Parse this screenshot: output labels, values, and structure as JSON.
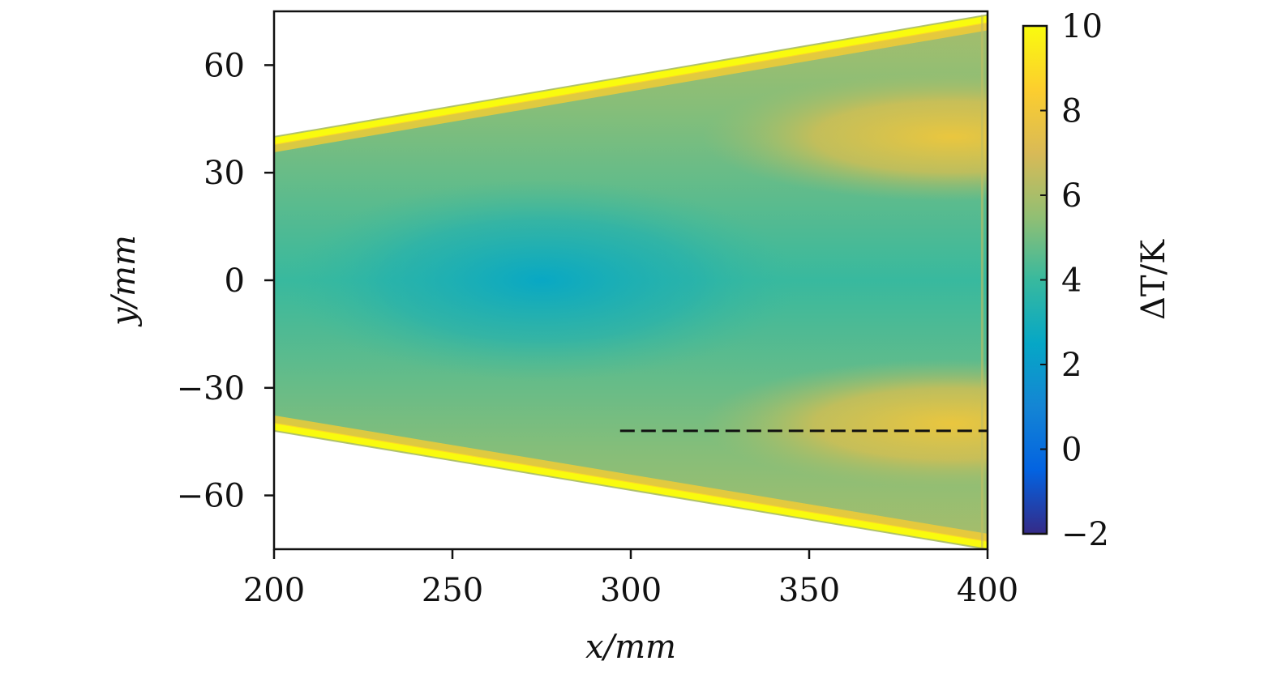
{
  "chart_data": {
    "type": "heatmap",
    "title": "",
    "xlabel": "x/mm",
    "ylabel": "y/mm",
    "xlim": [
      200,
      400
    ],
    "ylim": [
      -75,
      75
    ],
    "x_ticks": [
      200,
      250,
      300,
      350,
      400
    ],
    "y_ticks": [
      -60,
      -30,
      0,
      30,
      60
    ],
    "x_tick_labels": [
      "200",
      "250",
      "300",
      "350",
      "400"
    ],
    "y_tick_labels": [
      "−60",
      "−30",
      "0",
      "30",
      "60"
    ],
    "grid": false,
    "colorbar": {
      "label": "ΔT/K",
      "range": [
        -2,
        10
      ],
      "ticks": [
        -2,
        0,
        2,
        4,
        6,
        8,
        10
      ],
      "tick_labels": [
        "−2",
        "0",
        "2",
        "4",
        "6",
        "8",
        "10"
      ],
      "colormap": "parula",
      "colors": [
        "#352a87",
        "#0363e1",
        "#1485d4",
        "#06a7c6",
        "#38b99e",
        "#92bf73",
        "#d9ba56",
        "#fcce2e",
        "#f9fb0e"
      ]
    },
    "domain_edges": {
      "upper": [
        [
          200,
          40
        ],
        [
          400,
          74
        ]
      ],
      "lower": [
        [
          200,
          -42
        ],
        [
          400,
          -75
        ]
      ]
    },
    "field_description_values": {
      "centerline_min_dT": 2.5,
      "edge_dT": 10,
      "hot_lobes": [
        {
          "x_center": 385,
          "y_center": 40,
          "dT": 8
        },
        {
          "x_center": 385,
          "y_center": -40,
          "dT": 8
        }
      ]
    },
    "annotations": [
      {
        "type": "dashed-line",
        "x_start": 297,
        "x_end": 400,
        "y": -42
      }
    ]
  }
}
